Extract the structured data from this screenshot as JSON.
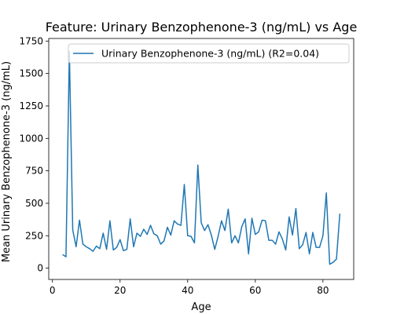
{
  "chart_data": {
    "type": "line",
    "title": "Feature: Urinary Benzophenone-3 (ng/mL) vs Age",
    "xlabel": "Age",
    "ylabel": "Mean Urinary Benzophenone-3 (ng/mL)",
    "xlim": [
      -1.1,
      89.1
    ],
    "ylim": [
      -87,
      1770
    ],
    "xticks": [
      0,
      20,
      40,
      60,
      80
    ],
    "yticks": [
      0,
      250,
      500,
      750,
      1000,
      1250,
      1500,
      1750
    ],
    "grid": false,
    "legend_position": "upper right",
    "line_color": "#1f77b4",
    "series": [
      {
        "name": "Urinary Benzophenone-3 (ng/mL) (R2=0.04)",
        "x": [
          3,
          4,
          5,
          6,
          7,
          8,
          9,
          10,
          11,
          12,
          13,
          14,
          15,
          16,
          17,
          18,
          19,
          20,
          21,
          22,
          23,
          24,
          25,
          26,
          27,
          28,
          29,
          30,
          31,
          32,
          33,
          34,
          35,
          36,
          37,
          38,
          39,
          40,
          41,
          42,
          43,
          44,
          45,
          46,
          47,
          48,
          49,
          50,
          51,
          52,
          53,
          54,
          55,
          56,
          57,
          58,
          59,
          60,
          61,
          62,
          63,
          64,
          65,
          66,
          67,
          68,
          69,
          70,
          71,
          72,
          73,
          74,
          75,
          76,
          77,
          78,
          79,
          80,
          81,
          82,
          83,
          84,
          85
        ],
        "y": [
          105,
          88,
          1670,
          295,
          165,
          370,
          185,
          165,
          150,
          130,
          170,
          150,
          270,
          145,
          365,
          140,
          160,
          220,
          135,
          145,
          380,
          165,
          270,
          245,
          300,
          260,
          330,
          265,
          250,
          185,
          210,
          315,
          255,
          365,
          340,
          330,
          645,
          250,
          245,
          195,
          795,
          350,
          290,
          335,
          255,
          145,
          245,
          365,
          290,
          455,
          195,
          250,
          195,
          320,
          380,
          110,
          385,
          260,
          280,
          370,
          365,
          215,
          215,
          185,
          280,
          225,
          140,
          395,
          255,
          460,
          150,
          180,
          275,
          110,
          275,
          160,
          160,
          250,
          580,
          30,
          45,
          70,
          420
        ]
      }
    ]
  }
}
